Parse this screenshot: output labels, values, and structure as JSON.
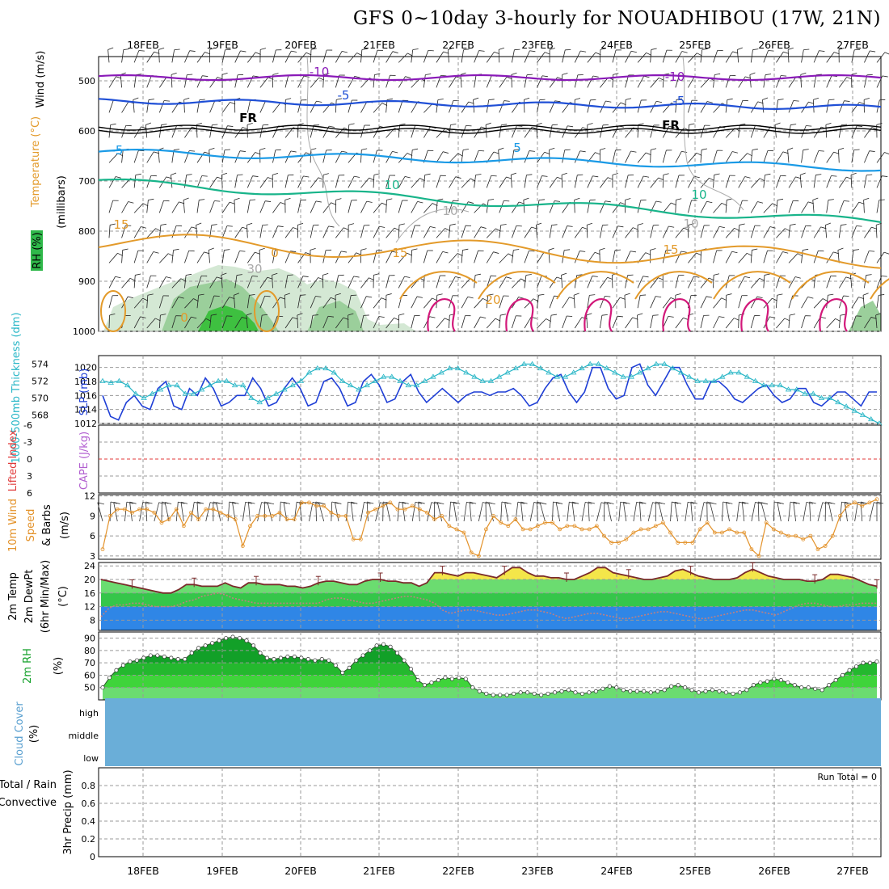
{
  "title": "GFS 0~10day 3-hourly for NOUADHIBOU (17W, 21N)",
  "dates": [
    "18FEB",
    "19FEB",
    "20FEB",
    "21FEB",
    "22FEB",
    "23FEB",
    "24FEB",
    "25FEB",
    "26FEB",
    "27FEB"
  ],
  "colors": {
    "purple": "#8a1ab8",
    "blue": "#1f4fd6",
    "cyan": "#1a9ae6",
    "teal": "#18b48a",
    "orange": "#e39a2a",
    "magenta": "#d2187a",
    "slp": "#1f3fd6",
    "thickness": "#2ab7c7",
    "wind": "#e3922a",
    "temp_fill": "#f4e64a",
    "green_dark": "#12a028",
    "green_mid": "#35c64a",
    "green_light": "#6bdc70",
    "blue_band": "#2f86e6",
    "cloud": "#6aaed8",
    "rh_line": "#7a4040",
    "lifted": "#e03a3a",
    "cape": "#b25fd0"
  },
  "chart_data": [
    {
      "type": "contour",
      "panel": "upper-air",
      "ylabel_wind": "Wind (m/s)",
      "ylabel_temp": "Temperature (°C)",
      "ylabel_rh": "RH (%)",
      "ylabel_units": "(millibars)",
      "yticks": [
        "500",
        "600",
        "700",
        "800",
        "900",
        "1000"
      ],
      "ylim": [
        450,
        1000
      ],
      "contour_labels": [
        "-10",
        "-10",
        "-5",
        "-5",
        "FR",
        "FR",
        "-5",
        "5",
        "10",
        "10",
        "15",
        "15",
        "15",
        "20",
        "10",
        "10",
        "30",
        "0",
        "0"
      ]
    },
    {
      "type": "line",
      "panel": "thickness-slp",
      "ylabel_left": "1000-500mb Thickness (dm)",
      "ylabel_right": "SLP (mb)",
      "yticks_left": [
        "574",
        "572",
        "570",
        "568"
      ],
      "yticks_right": [
        "1020",
        "1018",
        "1016",
        "1014",
        "1012"
      ],
      "ylim_slp": [
        1012,
        1021
      ],
      "ylim_thk": [
        567,
        575
      ],
      "series": [
        {
          "name": "SLP (mb)",
          "values": [
            1016,
            1013,
            1012.5,
            1015,
            1016,
            1014.5,
            1014,
            1017,
            1018,
            1014.5,
            1014,
            1017,
            1016,
            1018.5,
            1017,
            1014.5,
            1015,
            1016,
            1016,
            1018.5,
            1017,
            1014.5,
            1015,
            1017,
            1018.5,
            1017,
            1014.5,
            1015,
            1018,
            1018.5,
            1017,
            1014.5,
            1015,
            1018,
            1019,
            1017.5,
            1015,
            1015.5,
            1018,
            1019,
            1016.5,
            1015,
            1016,
            1017,
            1016,
            1015,
            1016,
            1016.5,
            1016.5,
            1016,
            1016.5,
            1016.5,
            1017,
            1016,
            1014.5,
            1015,
            1017,
            1018.5,
            1019,
            1016.5,
            1015,
            1016.5,
            1020,
            1020,
            1017,
            1015.5,
            1016,
            1020,
            1020.5,
            1017.5,
            1016,
            1018,
            1020,
            1020,
            1017.5,
            1015.5,
            1015.5,
            1018,
            1018,
            1017,
            1015.5,
            1015,
            1016,
            1017,
            1017.5,
            1016,
            1015,
            1015.5,
            1017,
            1017,
            1015,
            1014.5,
            1015.5,
            1016.5,
            1016.5,
            1015.5,
            1014.5,
            1016.5,
            1016.5
          ]
        },
        {
          "name": "1000-500mb Thickness (dm)",
          "values": [
            572,
            571.8,
            572,
            571.5,
            570.5,
            570,
            570.5,
            571,
            571.5,
            571.5,
            570.5,
            570.5,
            571,
            571.5,
            572,
            572,
            571.5,
            571.5,
            570,
            569.5,
            570,
            570.5,
            571,
            571.5,
            572,
            573,
            573.5,
            573.5,
            573,
            572,
            571.5,
            571,
            571.5,
            572,
            572.5,
            572.5,
            572,
            571.5,
            571.5,
            572,
            572.5,
            573,
            573.5,
            573.5,
            573,
            572.5,
            572,
            572,
            572.5,
            573,
            573.5,
            574,
            574,
            573.5,
            573,
            572.5,
            572.5,
            573,
            573.5,
            574,
            574,
            573.5,
            573,
            572.5,
            572.5,
            573,
            573.5,
            574,
            574,
            573.5,
            573,
            572.5,
            572,
            572,
            572,
            572.5,
            573,
            573,
            572.5,
            572,
            571.5,
            571.5,
            571.5,
            571,
            571,
            570.5,
            570.5,
            570,
            570,
            569.5,
            569,
            568.5,
            568,
            567.5,
            567
          ]
        }
      ]
    },
    {
      "type": "line",
      "panel": "stability",
      "ylabel_left": "Lifted Index",
      "ylabel_right": "CAPE (J/kg)",
      "yticks": [
        "-6",
        "-3",
        "0",
        "3",
        "6"
      ],
      "ylim": [
        -6,
        6
      ],
      "series": []
    },
    {
      "type": "line",
      "panel": "wind10m",
      "ylabel": "10m Wind Speed & Barbs (m/s)",
      "yticks": [
        "12",
        "9",
        "6",
        "3"
      ],
      "ylim": [
        2.5,
        12.2
      ],
      "series": [
        {
          "name": "10m Wind Speed",
          "values": [
            4,
            9,
            10,
            10,
            9.5,
            10,
            10,
            9.5,
            8,
            8.5,
            10,
            7.5,
            9.5,
            8.5,
            10,
            10,
            9.5,
            9,
            8.5,
            4.5,
            7.5,
            9,
            9,
            9,
            9.5,
            8.5,
            8.5,
            11,
            11,
            10.5,
            10.5,
            9.5,
            9,
            9,
            5.5,
            5.5,
            9.5,
            10,
            10.5,
            11,
            10,
            10,
            10.5,
            10,
            9.5,
            8.5,
            9,
            7.5,
            7,
            6.5,
            3.5,
            3,
            7,
            9,
            8,
            7.5,
            8.5,
            7,
            7,
            7.5,
            8,
            8,
            7,
            7.5,
            7.5,
            7,
            7,
            7.5,
            6,
            5,
            5,
            5.5,
            6.5,
            7,
            7,
            7.5,
            8,
            6.5,
            5,
            5,
            5,
            7,
            8,
            6.5,
            6.5,
            7,
            6.5,
            6.5,
            4,
            3,
            8,
            7,
            6.5,
            6,
            6,
            5.5,
            6,
            4,
            4.5,
            6,
            9,
            10.5,
            11,
            10.5,
            11,
            11.5
          ]
        }
      ]
    },
    {
      "type": "area",
      "panel": "temp2m",
      "ylabel": "2m Temp 2m DewPt (6hr Min/Max) (°C)",
      "yticks": [
        "24",
        "20",
        "16",
        "12",
        "8"
      ],
      "ylim": [
        5,
        25
      ],
      "series": [
        {
          "name": "2m Temp",
          "values": [
            20,
            19.5,
            19,
            18.5,
            18,
            17.5,
            17,
            16.5,
            16,
            16,
            17,
            18.5,
            18.5,
            18,
            18,
            18,
            19,
            18,
            17.5,
            19,
            19,
            18.5,
            18.5,
            18.5,
            18,
            18,
            17.5,
            18,
            19,
            19.5,
            19.5,
            19,
            18.5,
            18.5,
            19.5,
            20,
            20,
            19.5,
            19.5,
            19,
            19,
            18,
            19,
            22,
            22,
            21.5,
            21,
            22,
            22,
            21.5,
            21,
            20.5,
            22,
            23.5,
            23.5,
            22,
            21,
            21,
            20.5,
            20.5,
            20,
            20,
            21,
            22,
            23.5,
            23.5,
            22,
            21.5,
            21,
            20.5,
            20,
            20,
            20.5,
            21,
            22.5,
            23,
            22,
            21,
            20.5,
            20,
            20,
            20,
            20.5,
            22,
            23,
            22,
            21,
            20.5,
            20,
            20,
            20,
            19.5,
            19.5,
            20,
            21.5,
            21.5,
            21,
            20.5,
            19.5,
            18.5,
            18
          ]
        },
        {
          "name": "2m DewPt",
          "values": [
            9,
            11.5,
            12.5,
            12.5,
            13,
            13,
            12.5,
            12,
            12,
            12,
            12.5,
            13.5,
            14,
            15,
            15.5,
            16,
            15.5,
            14.5,
            14,
            13.5,
            13,
            13,
            13,
            13,
            13,
            13,
            13,
            13,
            13,
            14,
            14.5,
            14.5,
            14,
            13.5,
            13,
            13,
            13.5,
            14,
            14.5,
            15,
            15,
            14.5,
            14,
            13,
            11,
            10,
            10.5,
            11,
            11,
            10.5,
            10,
            9.5,
            9.5,
            10,
            10.5,
            11,
            11,
            10.5,
            10,
            9,
            8.5,
            9,
            9.5,
            10,
            10,
            9.5,
            9,
            8.5,
            8.5,
            9,
            9.5,
            10,
            10.5,
            10.5,
            10,
            9.5,
            9,
            8.5,
            8.5,
            9,
            9.5,
            10,
            10.5,
            11,
            11,
            10.5,
            10,
            9.5,
            10.5,
            11.5,
            12.5,
            13,
            13,
            12.5,
            12,
            12,
            12.5,
            12.5,
            13,
            13,
            13
          ]
        }
      ]
    },
    {
      "type": "area",
      "panel": "rh2m",
      "ylabel": "2m RH (%)",
      "yticks": [
        "90",
        "80",
        "70",
        "60",
        "50"
      ],
      "ylim": [
        40,
        95
      ],
      "series": [
        {
          "name": "2m RH",
          "values": [
            50,
            58,
            64,
            68,
            71,
            72,
            74,
            76,
            76,
            75,
            74,
            73,
            73,
            78,
            82,
            84,
            86,
            88,
            90,
            91,
            90,
            88,
            84,
            78,
            74,
            73,
            74,
            75,
            75,
            74,
            73,
            72,
            73,
            72,
            68,
            62,
            66,
            72,
            76,
            80,
            84,
            85,
            83,
            78,
            72,
            65,
            56,
            52,
            54,
            56,
            58,
            57,
            58,
            57,
            50,
            47,
            45,
            44,
            44,
            44,
            45,
            46,
            46,
            45,
            44,
            45,
            46,
            47,
            48,
            46,
            45,
            46,
            47,
            49,
            51,
            50,
            48,
            47,
            47,
            47,
            46,
            47,
            48,
            51,
            52,
            50,
            48,
            46,
            47,
            48,
            47,
            46,
            45,
            46,
            48,
            52,
            54,
            55,
            57,
            56,
            54,
            52,
            50,
            50,
            49,
            48,
            52,
            56,
            60,
            64,
            67,
            70,
            70,
            71
          ]
        }
      ]
    },
    {
      "type": "heatmap",
      "panel": "cloud",
      "ylabel": "Cloud Cover (%)",
      "layers": [
        "high",
        "middle",
        "low"
      ]
    },
    {
      "type": "bar",
      "panel": "precip",
      "ylabel_left": "Total / Rain",
      "ylabel_left2": "Convective",
      "ylabel": "3hr Precip (mm)",
      "yticks": [
        "0.8",
        "0.6",
        "0.4",
        "0.2",
        "0"
      ],
      "ylim": [
        0,
        1
      ],
      "annotation": "Run Total = 0",
      "values": []
    }
  ]
}
